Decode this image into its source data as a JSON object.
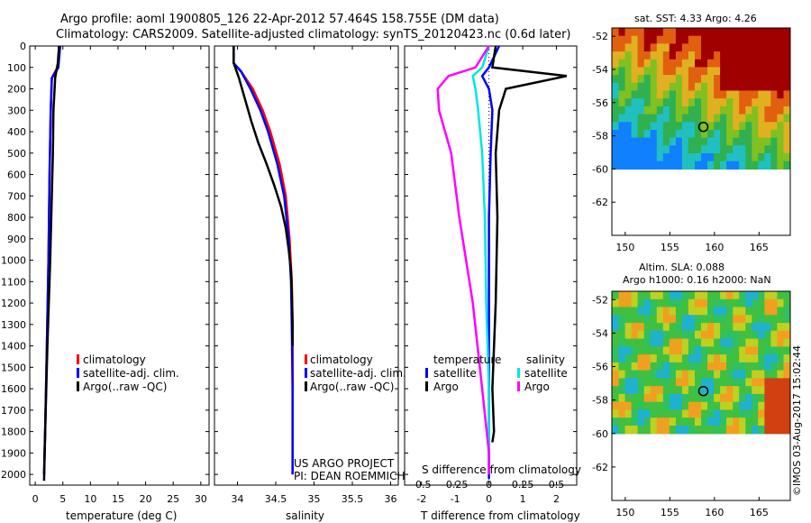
{
  "header": {
    "line1": "Argo profile: aoml 1900805_126 22-Apr-2012 57.464S 158.755E (DM data)",
    "line2": "Climatology: CARS2009. Satellite-adjusted climatology: synTS_20120423.nc (0.6d later)"
  },
  "colors": {
    "climatology": "#ff0000",
    "satellite": "#0000ff",
    "argo": "#000000",
    "sal_satellite": "#00e5e5",
    "sal_argo": "#ff00ff"
  },
  "chart_data": [
    {
      "type": "line",
      "name": "temperature",
      "xlabel": "temperature (deg C)",
      "xlim": [
        -1,
        31.5
      ],
      "ylim": [
        2050,
        0
      ],
      "xticks": [
        0,
        5,
        10,
        15,
        20,
        25,
        30
      ],
      "yticks": [
        0,
        100,
        200,
        300,
        400,
        500,
        600,
        700,
        800,
        900,
        1000,
        1100,
        1200,
        1300,
        1400,
        1500,
        1600,
        1700,
        1800,
        1900,
        2000
      ],
      "legend": [
        "climatology",
        "satellite-adj. clim.",
        "Argo(..raw -QC)"
      ],
      "series": [
        {
          "name": "climatology",
          "color": "#ff0000",
          "x": [
            4.5,
            4.0,
            3.0,
            2.8,
            2.6,
            2.4,
            2.1,
            1.8,
            1.6
          ],
          "y": [
            0,
            100,
            150,
            300,
            600,
            1000,
            1400,
            1800,
            2000
          ]
        },
        {
          "name": "satellite-adj. clim.",
          "color": "#0000ff",
          "x": [
            4.5,
            4.2,
            3.0,
            2.8,
            2.6,
            2.4,
            2.1,
            1.8,
            1.6
          ],
          "y": [
            0,
            100,
            150,
            300,
            600,
            1000,
            1400,
            1800,
            2000
          ]
        },
        {
          "name": "Argo(..raw -QC)",
          "color": "#000000",
          "x": [
            4.3,
            4.1,
            3.8,
            3.6,
            3.5,
            3.3,
            3.2,
            3.0,
            2.7,
            2.2,
            1.8,
            1.6
          ],
          "y": [
            0,
            80,
            120,
            150,
            200,
            300,
            500,
            700,
            1000,
            1400,
            1800,
            2030
          ]
        }
      ]
    },
    {
      "type": "line",
      "name": "salinity",
      "xlabel": "salinity",
      "xlim": [
        33.7,
        36.1
      ],
      "ylim": [
        2050,
        0
      ],
      "xticks": [
        34,
        34.5,
        35,
        35.5,
        36
      ],
      "legend": [
        "climatology",
        "satellite-adj. clim.",
        "Argo(..raw -QC)"
      ],
      "series": [
        {
          "name": "climatology",
          "color": "#ff0000",
          "x": [
            33.95,
            33.95,
            34.05,
            34.2,
            34.33,
            34.43,
            34.55,
            34.63,
            34.68,
            34.71,
            34.72,
            34.72,
            34.72
          ],
          "y": [
            0,
            80,
            120,
            200,
            300,
            400,
            550,
            700,
            900,
            1100,
            1300,
            1600,
            2000
          ]
        },
        {
          "name": "satellite-adj. clim.",
          "color": "#0000ff",
          "x": [
            33.95,
            33.95,
            34.05,
            34.17,
            34.3,
            34.4,
            34.52,
            34.61,
            34.67,
            34.7,
            34.71,
            34.72,
            34.72
          ],
          "y": [
            0,
            80,
            120,
            200,
            300,
            400,
            550,
            700,
            900,
            1100,
            1300,
            1600,
            2000
          ]
        },
        {
          "name": "Argo(..raw -QC)",
          "color": "#000000",
          "x": [
            33.95,
            33.95,
            34.02,
            34.1,
            34.18,
            34.27,
            34.38,
            34.48,
            34.57,
            34.63,
            34.67,
            34.7,
            34.71,
            34.72,
            34.72
          ],
          "y": [
            0,
            80,
            150,
            250,
            350,
            450,
            550,
            650,
            750,
            850,
            950,
            1050,
            1150,
            1300,
            1400
          ]
        }
      ],
      "annotation": [
        "US ARGO PROJECT",
        "PI: DEAN ROEMMICH"
      ]
    },
    {
      "type": "line",
      "name": "differences",
      "xlabel": "T difference from climatology",
      "xlabel_top": "S difference from climatology",
      "xlim": [
        -2.5,
        2.6
      ],
      "ylim": [
        2050,
        0
      ],
      "xticks": [
        -2,
        -1,
        0,
        1,
        2
      ],
      "xticks_s": [
        -0.5,
        -0.25,
        0,
        0.25,
        0.5
      ],
      "legend_groups": {
        "temperature": [
          "satellite",
          "Argo"
        ],
        "salinity": [
          "satellite",
          "Argo"
        ]
      },
      "series": [
        {
          "name": "temperature satellite",
          "color": "#0000ff",
          "x": [
            0.3,
            0.0,
            -0.2,
            0.0,
            0.1,
            0.05,
            0.0,
            0.0,
            0.0,
            0.0,
            0.0
          ],
          "y": [
            0,
            100,
            140,
            200,
            300,
            500,
            800,
            1200,
            1600,
            1900,
            2020
          ]
        },
        {
          "name": "temperature Argo",
          "color": "#000000",
          "x": [
            0.2,
            0.1,
            2.3,
            0.5,
            0.3,
            0.2,
            0.25,
            0.2,
            0.1,
            0.15,
            0.1
          ],
          "y": [
            0,
            100,
            140,
            200,
            300,
            500,
            800,
            1200,
            1600,
            1800,
            1850
          ]
        },
        {
          "name": "salinity satellite",
          "color": "#00e5e5",
          "x": [
            0.0,
            -0.05,
            -0.12,
            -0.1,
            -0.08,
            -0.05,
            -0.03,
            -0.02,
            0.0,
            0.0,
            0.0
          ],
          "y": [
            0,
            100,
            140,
            200,
            300,
            500,
            800,
            1200,
            1600,
            1900,
            2000
          ]
        },
        {
          "name": "salinity Argo",
          "color": "#ff00ff",
          "x": [
            0.0,
            -0.1,
            -0.3,
            -0.38,
            -0.37,
            -0.28,
            -0.22,
            -0.12,
            -0.05,
            0.0,
            0.0
          ],
          "y": [
            0,
            100,
            140,
            200,
            300,
            500,
            800,
            1200,
            1600,
            1900,
            2000
          ]
        }
      ]
    },
    {
      "type": "heatmap",
      "name": "sst-map",
      "title": "sat. SST: 4.33 Argo: 4.26",
      "xticks": [
        150,
        155,
        160,
        165
      ],
      "yticks": [
        -52,
        -54,
        -56,
        -58,
        -60,
        -62
      ],
      "xlim": [
        148.5,
        168.5
      ],
      "ylim": [
        -64,
        -51.5
      ],
      "argo_position": {
        "lon": 158.755,
        "lat": -57.464
      }
    },
    {
      "type": "heatmap",
      "name": "sla-map",
      "title": [
        "Altim. SLA: 0.088",
        "Argo h1000: 0.16 h2000: NaN"
      ],
      "xticks": [
        150,
        155,
        160,
        165
      ],
      "yticks": [
        -52,
        -54,
        -56,
        -58,
        -60,
        -62
      ],
      "xlim": [
        148.5,
        168.5
      ],
      "ylim": [
        -64,
        -51.5
      ],
      "argo_position": {
        "lon": 158.755,
        "lat": -57.464
      }
    }
  ],
  "footer": {
    "credit": "©IMOS 03-Aug-2017 15:02:44"
  }
}
